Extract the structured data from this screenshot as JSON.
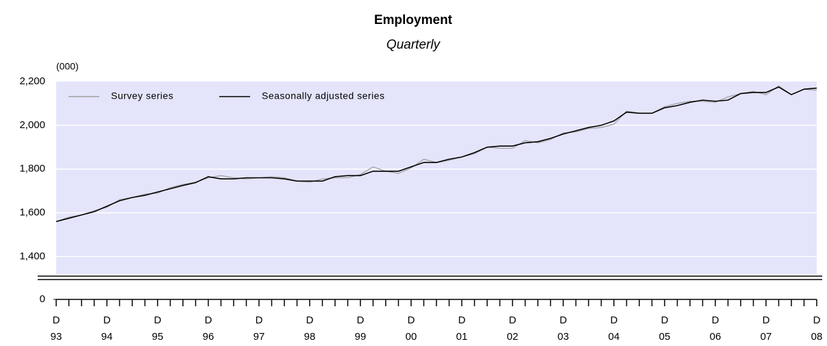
{
  "chart_data": {
    "type": "line",
    "title": "Employment",
    "subtitle": "Quarterly",
    "y_unit": "(000)",
    "categories": [
      [
        "D",
        "93"
      ],
      null,
      null,
      null,
      [
        "D",
        "94"
      ],
      null,
      null,
      null,
      [
        "D",
        "95"
      ],
      null,
      null,
      null,
      [
        "D",
        "96"
      ],
      null,
      null,
      null,
      [
        "D",
        "97"
      ],
      null,
      null,
      null,
      [
        "D",
        "98"
      ],
      null,
      null,
      null,
      [
        "D",
        "99"
      ],
      null,
      null,
      null,
      [
        "D",
        "00"
      ],
      null,
      null,
      null,
      [
        "D",
        "01"
      ],
      null,
      null,
      null,
      [
        "D",
        "02"
      ],
      null,
      null,
      null,
      [
        "D",
        "03"
      ],
      null,
      null,
      null,
      [
        "D",
        "04"
      ],
      null,
      null,
      null,
      [
        "D",
        "05"
      ],
      null,
      null,
      null,
      [
        "D",
        "06"
      ],
      null,
      null,
      null,
      [
        "D",
        "07"
      ],
      null,
      null,
      null,
      [
        "D",
        "08"
      ]
    ],
    "series": [
      {
        "name": "Survey series",
        "color": "#a0a0a0",
        "values": [
          1560,
          1580,
          1590,
          1610,
          1625,
          1660,
          1670,
          1685,
          1690,
          1715,
          1730,
          1740,
          1760,
          1770,
          1760,
          1755,
          1760,
          1765,
          1760,
          1745,
          1740,
          1755,
          1760,
          1760,
          1775,
          1810,
          1790,
          1780,
          1805,
          1845,
          1830,
          1840,
          1855,
          1870,
          1900,
          1895,
          1895,
          1930,
          1920,
          1935,
          1965,
          1970,
          1985,
          1990,
          2005,
          2065,
          2055,
          2055,
          2085,
          2100,
          2110,
          2110,
          2105,
          2130,
          2145,
          2155,
          2140,
          2180,
          2140,
          2165,
          2160
        ]
      },
      {
        "name": "Seasonally adjusted series",
        "color": "#000000",
        "values": [
          1560,
          1575,
          1590,
          1605,
          1630,
          1655,
          1670,
          1680,
          1695,
          1710,
          1725,
          1738,
          1765,
          1755,
          1755,
          1760,
          1760,
          1760,
          1755,
          1745,
          1745,
          1745,
          1765,
          1770,
          1770,
          1790,
          1790,
          1790,
          1810,
          1830,
          1830,
          1845,
          1855,
          1875,
          1900,
          1905,
          1905,
          1920,
          1925,
          1940,
          1960,
          1975,
          1990,
          2000,
          2020,
          2060,
          2055,
          2055,
          2080,
          2090,
          2105,
          2115,
          2110,
          2115,
          2145,
          2150,
          2150,
          2175,
          2140,
          2165,
          2170
        ]
      }
    ],
    "ylim": [
      1320,
      2200
    ],
    "yticks": [
      0,
      {
        "value": 1400,
        "label": "1,400"
      },
      {
        "value": 1600,
        "label": "1,600"
      },
      {
        "value": 1800,
        "label": "1,800"
      },
      {
        "value": 2000,
        "label": "2,000"
      },
      {
        "value": 2200,
        "label": "2,200"
      }
    ],
    "grid": true,
    "plot_background": "#e4e4fb",
    "legend": "top-left"
  }
}
